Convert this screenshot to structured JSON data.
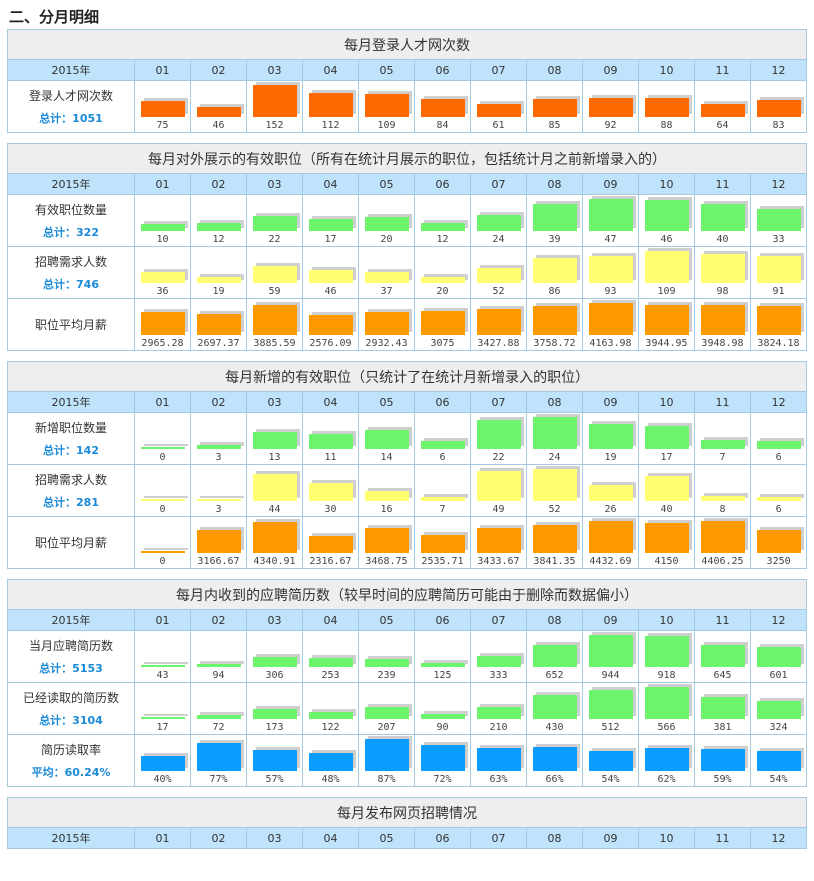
{
  "heading": "二、分月明细",
  "columns": [
    "2015年",
    "01",
    "02",
    "03",
    "04",
    "05",
    "06",
    "07",
    "08",
    "09",
    "10",
    "11",
    "12"
  ],
  "sections": [
    {
      "title": "每月登录人才网次数",
      "rows": [
        {
          "label": "登录人才网次数",
          "summary": "总计：1051",
          "color": "#ff6a00",
          "values": [
            75,
            46,
            152,
            112,
            109,
            84,
            61,
            85,
            92,
            88,
            64,
            83
          ]
        }
      ]
    },
    {
      "title": "每月对外展示的有效职位（所有在统计月展示的职位，包括统计月之前新增录入的）",
      "rows": [
        {
          "label": "有效职位数量",
          "summary": "总计：322",
          "color": "#6cf56c",
          "values": [
            10,
            12,
            22,
            17,
            20,
            12,
            24,
            39,
            47,
            46,
            40,
            33
          ]
        },
        {
          "label": "招聘需求人数",
          "summary": "总计：746",
          "color": "#ffff70",
          "values": [
            36,
            19,
            59,
            46,
            37,
            20,
            52,
            86,
            93,
            109,
            98,
            91
          ]
        },
        {
          "label": "职位平均月薪",
          "color": "#ff9900",
          "values": [
            2965.28,
            2697.37,
            3885.59,
            2576.09,
            2932.43,
            3075,
            3427.88,
            3758.72,
            4163.98,
            3944.95,
            3948.98,
            3824.18
          ]
        }
      ]
    },
    {
      "title": "每月新增的有效职位（只统计了在统计月新增录入的职位）",
      "rows": [
        {
          "label": "新增职位数量",
          "summary": "总计：142",
          "color": "#6cf56c",
          "values": [
            0,
            3,
            13,
            11,
            14,
            6,
            22,
            24,
            19,
            17,
            7,
            6
          ]
        },
        {
          "label": "招聘需求人数",
          "summary": "总计：281",
          "color": "#ffff70",
          "values": [
            0,
            3,
            44,
            30,
            16,
            7,
            49,
            52,
            26,
            40,
            8,
            6
          ]
        },
        {
          "label": "职位平均月薪",
          "color": "#ff9900",
          "values": [
            0,
            3166.67,
            4340.91,
            2316.67,
            3468.75,
            2535.71,
            3433.67,
            3841.35,
            4432.69,
            4150,
            4406.25,
            3250
          ]
        }
      ]
    },
    {
      "title": "每月内收到的应聘简历数（较早时间的应聘简历可能由于删除而数据偏小）",
      "rows": [
        {
          "label": "当月应聘简历数",
          "summary": "总计：5153",
          "color": "#6cf56c",
          "values": [
            43,
            94,
            306,
            253,
            239,
            125,
            333,
            652,
            944,
            918,
            645,
            601
          ]
        },
        {
          "label": "已经读取的简历数",
          "summary": "总计：3104",
          "color": "#6cf56c",
          "values": [
            17,
            72,
            173,
            122,
            207,
            90,
            210,
            430,
            512,
            566,
            381,
            324
          ]
        },
        {
          "label": "简历读取率",
          "summary": "平均：60.24%",
          "color": "#0a9cff",
          "values": [
            40,
            77,
            57,
            48,
            87,
            72,
            63,
            66,
            54,
            62,
            59,
            54
          ],
          "value_labels": [
            "40%",
            "77%",
            "57%",
            "48%",
            "87%",
            "72%",
            "63%",
            "66%",
            "54%",
            "62%",
            "59%",
            "54%"
          ]
        }
      ]
    },
    {
      "title": "每月发布网页招聘情况",
      "rows": []
    }
  ]
}
